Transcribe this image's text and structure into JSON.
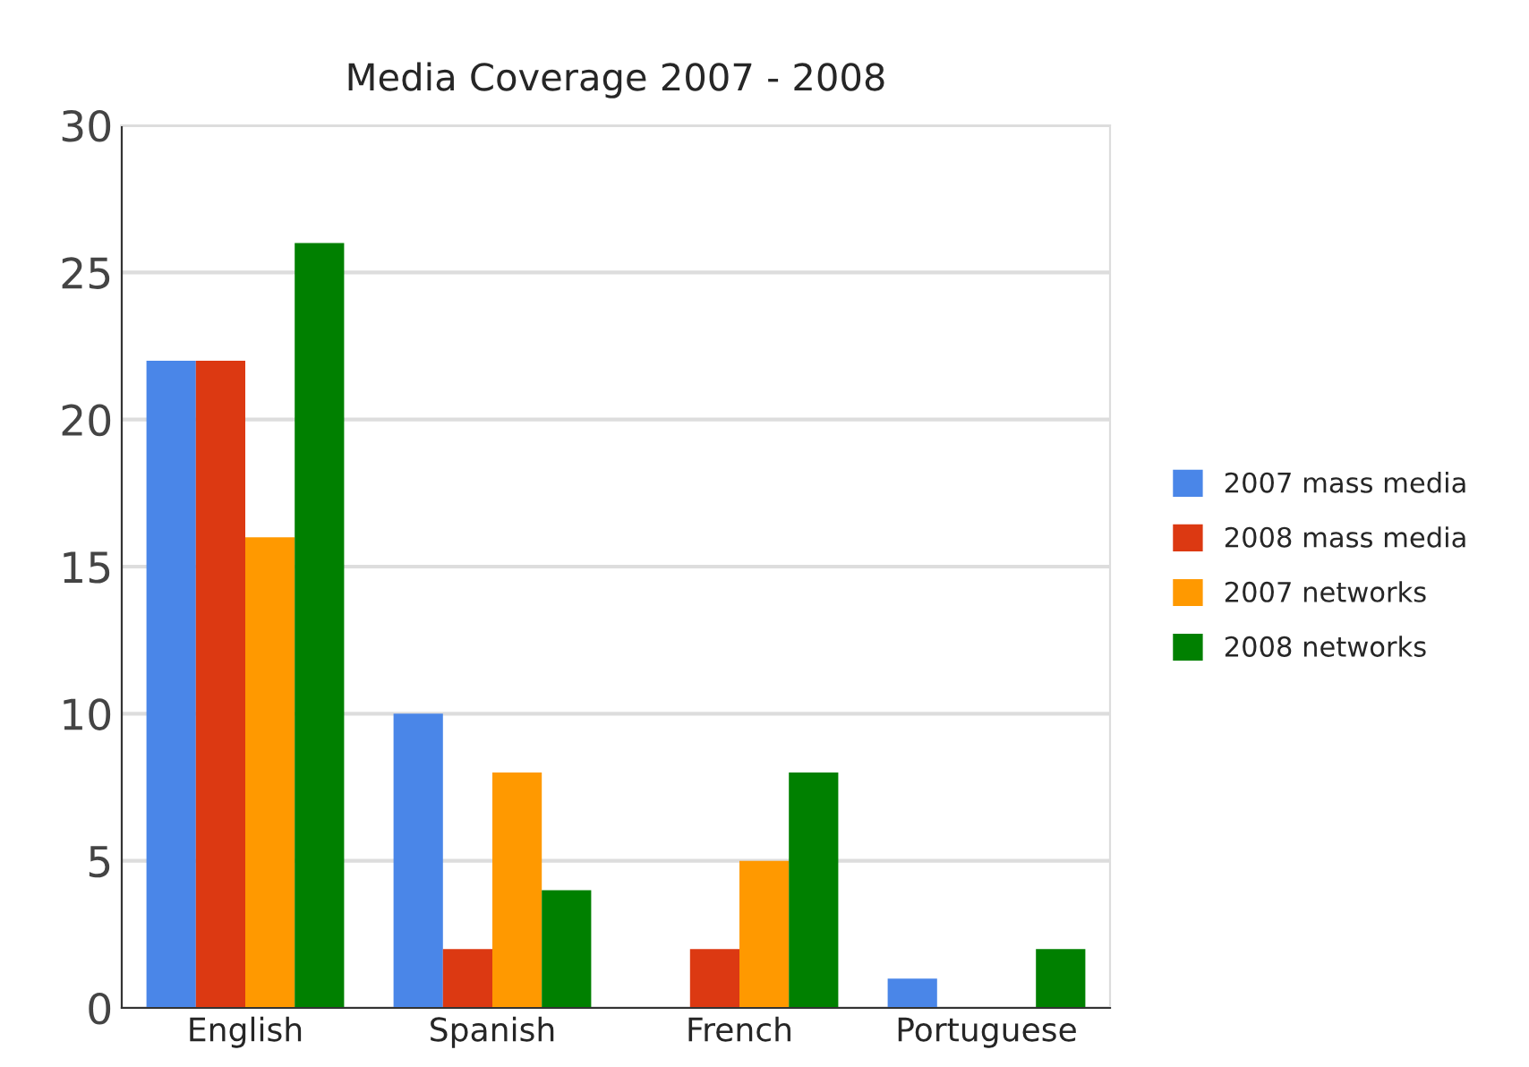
{
  "chart_data": {
    "type": "bar",
    "title": "Media Coverage 2007 - 2008",
    "categories": [
      "English",
      "Spanish",
      "French",
      "Portuguese"
    ],
    "series": [
      {
        "name": "2007 mass media",
        "color": "#4a86e8",
        "values": [
          22,
          10,
          0,
          1
        ]
      },
      {
        "name": "2008 mass media",
        "color": "#dc3912",
        "values": [
          22,
          2,
          2,
          0
        ]
      },
      {
        "name": "2007 networks",
        "color": "#ff9900",
        "values": [
          16,
          8,
          5,
          0
        ]
      },
      {
        "name": "2008 networks",
        "color": "#008000",
        "values": [
          26,
          4,
          8,
          2
        ]
      }
    ],
    "ylim": [
      0,
      30
    ],
    "yticks": [
      0,
      5,
      10,
      15,
      20,
      25,
      30
    ],
    "grid": "y",
    "legend": "right"
  }
}
